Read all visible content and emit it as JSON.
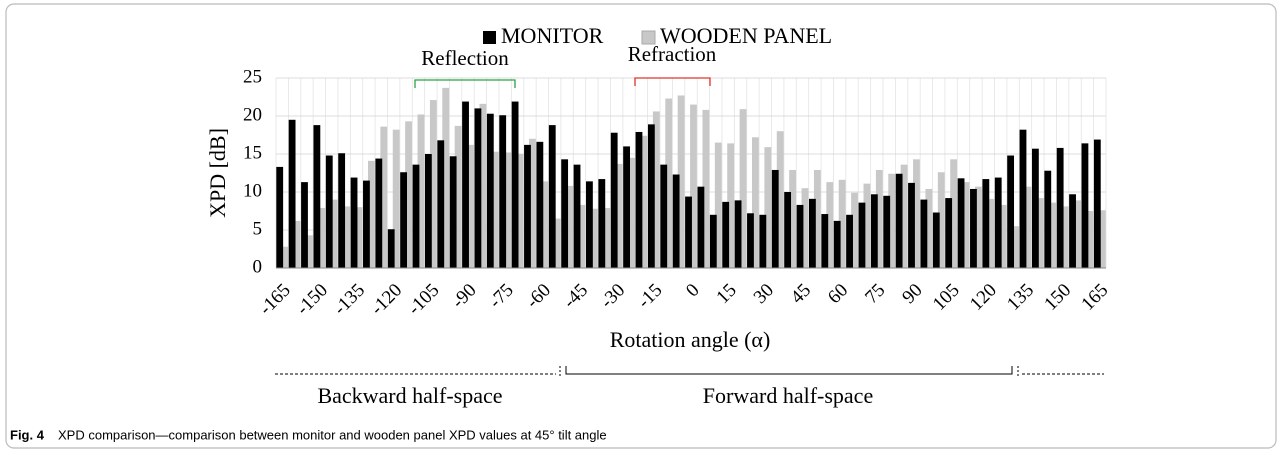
{
  "chart_data": {
    "type": "bar",
    "legend": "top",
    "y_label": "XPD [dB]",
    "x_label": "Rotation angle (α)",
    "categories": [
      "-165",
      null,
      null,
      "-150",
      null,
      null,
      "-135",
      null,
      null,
      "-120",
      null,
      null,
      "-105",
      null,
      null,
      "-90",
      null,
      null,
      "-75",
      null,
      null,
      "-60",
      null,
      null,
      "-45",
      null,
      null,
      "-30",
      null,
      null,
      "-15",
      null,
      null,
      "0",
      null,
      null,
      "15",
      null,
      null,
      "30",
      null,
      null,
      "45",
      null,
      null,
      "60",
      null,
      null,
      "75",
      null,
      null,
      "90",
      null,
      null,
      "105",
      null,
      null,
      "120",
      null,
      null,
      "135",
      null,
      null,
      "150",
      null,
      null,
      "165"
    ],
    "series": [
      {
        "name": "MONITOR",
        "color": "#000000",
        "values": [
          13.3,
          19.5,
          11.3,
          18.8,
          14.8,
          15.1,
          11.9,
          11.5,
          14.4,
          5.1,
          12.6,
          13.6,
          15.0,
          16.8,
          14.7,
          21.9,
          21.0,
          20.3,
          20.1,
          21.9,
          16.2,
          16.6,
          18.8,
          14.3,
          13.6,
          11.4,
          11.7,
          17.8,
          16.0,
          17.9,
          18.9,
          13.6,
          12.3,
          9.4,
          10.7,
          7.0,
          8.7,
          8.9,
          7.2,
          7.0,
          12.9,
          10.0,
          8.3,
          9.1,
          7.1,
          6.2,
          7.0,
          8.6,
          9.7,
          9.5,
          12.4,
          11.2,
          9.0,
          7.3,
          9.2,
          11.8,
          10.4,
          11.7,
          11.9,
          14.8,
          18.2,
          15.7,
          12.8,
          15.8,
          9.7,
          16.4,
          16.9
        ]
      },
      {
        "name": "WOODEN PANEL",
        "color": "#c8c8c8",
        "values": [
          2.8,
          6.2,
          4.3,
          7.9,
          9.0,
          8.1,
          8.0,
          14.1,
          18.6,
          18.2,
          19.3,
          20.2,
          22.1,
          23.7,
          18.7,
          16.2,
          21.6,
          15.3,
          15.2,
          15.0,
          17.0,
          11.4,
          6.5,
          10.8,
          8.3,
          7.8,
          7.9,
          13.7,
          14.5,
          17.4,
          20.6,
          22.3,
          22.7,
          21.5,
          20.8,
          16.5,
          16.4,
          20.9,
          17.2,
          15.9,
          18.0,
          12.9,
          10.5,
          12.9,
          11.3,
          11.6,
          9.9,
          11.1,
          12.9,
          12.4,
          13.6,
          14.3,
          10.4,
          12.6,
          14.3,
          11.3,
          10.7,
          9.1,
          8.3,
          5.5,
          10.7,
          9.2,
          8.6,
          8.1,
          8.9,
          7.5,
          7.6
        ]
      }
    ],
    "ylim": [
      0,
      25
    ],
    "yticks": [
      0,
      5,
      10,
      15,
      20,
      25
    ],
    "grid": true,
    "annotations": [
      {
        "text": "Reflection",
        "color": "#2ca048"
      },
      {
        "text": "Refraction",
        "color": "#e0352b"
      },
      {
        "text": "Backward half-space",
        "color": "#000000"
      },
      {
        "text": "Forward half-space",
        "color": "#000000"
      }
    ]
  },
  "caption": {
    "label": "Fig. 4",
    "text": "XPD comparison—comparison between monitor and wooden panel XPD values at 45° tilt angle"
  }
}
